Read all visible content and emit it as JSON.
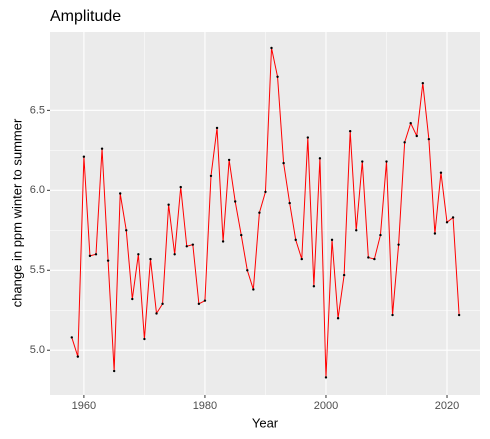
{
  "chart_data": {
    "type": "line",
    "title": "Amplitude",
    "x_label": "Year",
    "y_label": "change in ppm winter to summer",
    "x": [
      1958,
      1959,
      1960,
      1961,
      1962,
      1963,
      1964,
      1965,
      1966,
      1967,
      1968,
      1969,
      1970,
      1971,
      1972,
      1973,
      1974,
      1975,
      1976,
      1977,
      1978,
      1979,
      1980,
      1981,
      1982,
      1983,
      1984,
      1985,
      1986,
      1987,
      1988,
      1989,
      1990,
      1991,
      1992,
      1993,
      1994,
      1995,
      1996,
      1997,
      1998,
      1999,
      2000,
      2001,
      2002,
      2003,
      2004,
      2005,
      2006,
      2007,
      2008,
      2009,
      2010,
      2011,
      2012,
      2013,
      2014,
      2015,
      2016,
      2017,
      2018,
      2019,
      2020,
      2021,
      2022
    ],
    "values": [
      5.08,
      4.96,
      6.21,
      5.59,
      5.6,
      6.26,
      5.56,
      4.87,
      5.98,
      5.75,
      5.32,
      5.6,
      5.07,
      5.57,
      5.23,
      5.29,
      5.91,
      5.6,
      6.02,
      5.65,
      5.66,
      5.29,
      5.31,
      6.09,
      6.39,
      5.68,
      6.19,
      5.93,
      5.72,
      5.5,
      5.38,
      5.86,
      5.99,
      6.89,
      6.71,
      6.17,
      5.92,
      5.69,
      5.57,
      6.33,
      5.4,
      6.2,
      4.83,
      5.69,
      5.2,
      5.47,
      6.37,
      5.75,
      6.18,
      5.58,
      5.57,
      5.72,
      6.18,
      5.22,
      5.66,
      6.3,
      6.42,
      6.34,
      6.67,
      6.32,
      5.73,
      6.11,
      5.8,
      5.83,
      5.22
    ],
    "color": "red",
    "point_color": "black",
    "xlim": [
      1954.4,
      2025.45
    ],
    "xticks": [
      1960,
      1980,
      2000,
      2020
    ],
    "ylim": [
      4.72,
      6.99
    ],
    "yticks": [
      {
        "value": 5.0,
        "label": "5.0"
      },
      5.5,
      {
        "value": 6.0,
        "label": "6.0"
      },
      6.5
    ],
    "grid": true
  }
}
